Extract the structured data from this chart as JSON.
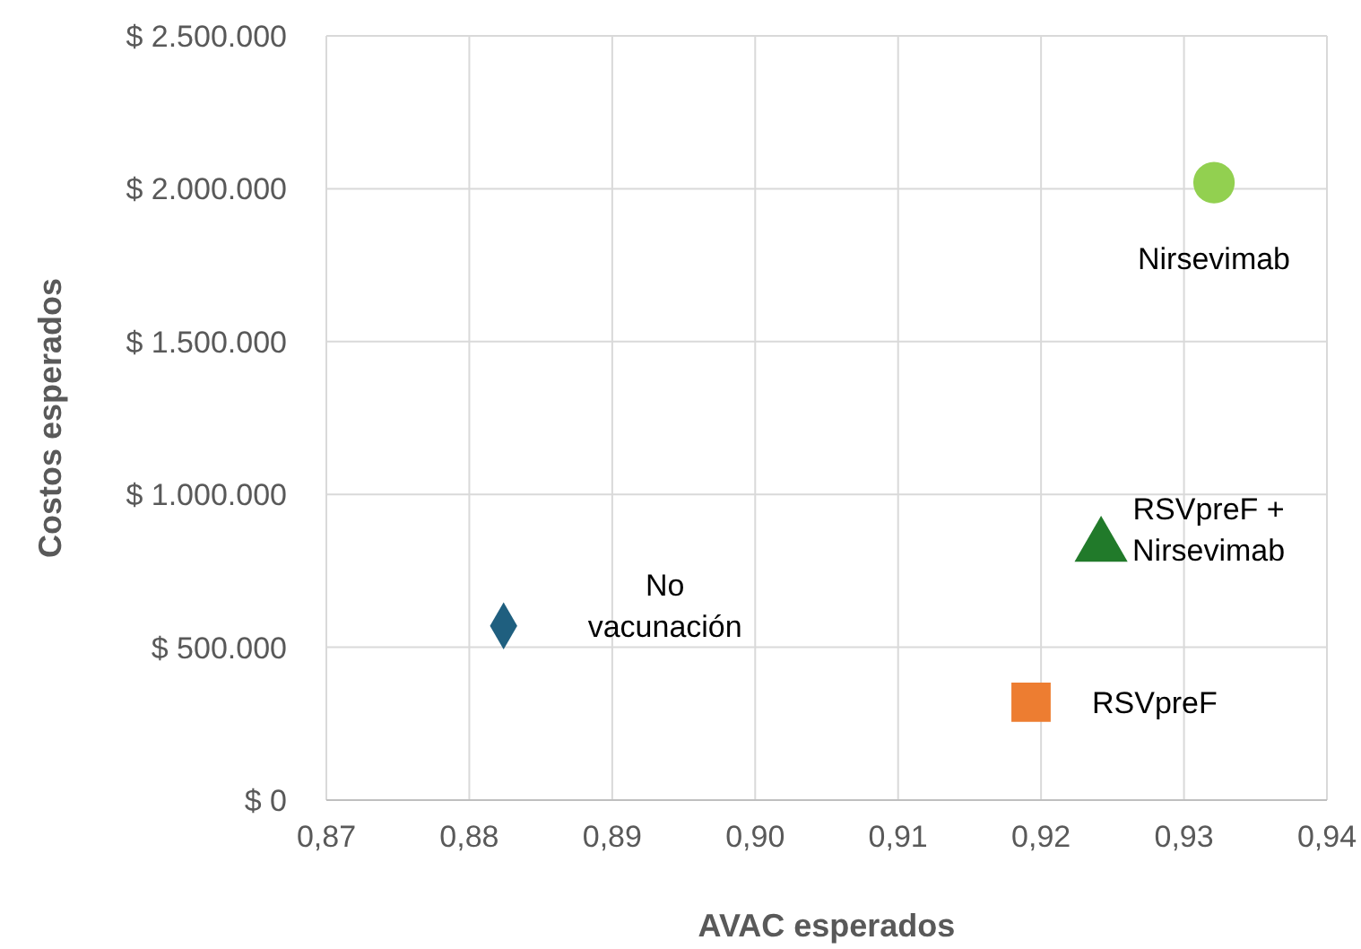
{
  "chart_data": {
    "type": "scatter",
    "xlabel": "AVAC esperados",
    "ylabel": "Costos esperados",
    "grid": true,
    "xlim": [
      0.87,
      0.94
    ],
    "xticks": [
      {
        "value": 0.87,
        "label": "0,87"
      },
      {
        "value": 0.88,
        "label": "0,88"
      },
      {
        "value": 0.89,
        "label": "0,89"
      },
      {
        "value": 0.9,
        "label": "0,90"
      },
      {
        "value": 0.91,
        "label": "0,91"
      },
      {
        "value": 0.92,
        "label": "0,92"
      },
      {
        "value": 0.93,
        "label": "0,93"
      },
      {
        "value": 0.94,
        "label": "0,94"
      }
    ],
    "ylim": [
      0,
      2500000
    ],
    "yticks": [
      {
        "value": 0,
        "label": "$ 0"
      },
      {
        "value": 500000,
        "label": "$ 500.000"
      },
      {
        "value": 1000000,
        "label": "$ 1.000.000"
      },
      {
        "value": 1500000,
        "label": "$ 1.500.000"
      },
      {
        "value": 2000000,
        "label": "$ 2.000.000"
      },
      {
        "value": 2500000,
        "label": "$ 2.500.000"
      }
    ],
    "series": [
      {
        "name": "No vacunación",
        "color": "#1f5f7f",
        "marker": "diamond",
        "x": [
          0.8824
        ],
        "values": [
          570000
        ]
      },
      {
        "name": "RSVpreF",
        "color": "#ed7d31",
        "marker": "square",
        "x": [
          0.9193
        ],
        "values": [
          320000
        ]
      },
      {
        "name": "RSVpreF + Nirsevimab",
        "color": "#217a2a",
        "marker": "triangle",
        "x": [
          0.9242
        ],
        "values": [
          830000
        ]
      },
      {
        "name": "Nirsevimab",
        "color": "#92d050",
        "marker": "circle",
        "x": [
          0.9321
        ],
        "values": [
          2020000
        ]
      }
    ]
  }
}
